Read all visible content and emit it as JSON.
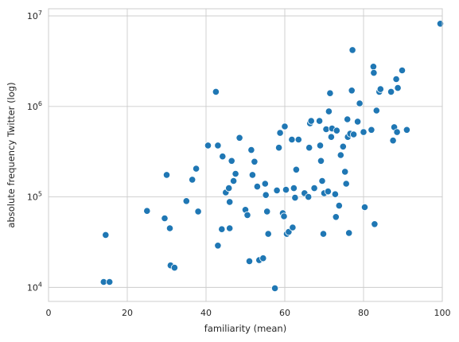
{
  "chart_data": {
    "type": "scatter",
    "xlabel": "familiarity (mean)",
    "ylabel": "absolute frequency Twitter (log)",
    "xlim": [
      0,
      100
    ],
    "ylim": [
      7000,
      12000000
    ],
    "yscale": "log",
    "grid": true,
    "x_ticks": [
      0,
      20,
      40,
      60,
      80,
      100
    ],
    "x_tick_labels": [
      "0",
      "20",
      "40",
      "60",
      "80",
      "100"
    ],
    "y_ticks": [
      10000,
      100000,
      1000000,
      10000000
    ],
    "y_tick_labels": [
      {
        "base": "10",
        "exp": "4"
      },
      {
        "base": "10",
        "exp": "5"
      },
      {
        "base": "10",
        "exp": "6"
      },
      {
        "base": "10",
        "exp": "7"
      }
    ],
    "marker_color": "#1f77b4",
    "points": [
      {
        "x": 14,
        "y": 11500
      },
      {
        "x": 15.5,
        "y": 11500
      },
      {
        "x": 14.5,
        "y": 38000
      },
      {
        "x": 25,
        "y": 70000
      },
      {
        "x": 29.5,
        "y": 58000
      },
      {
        "x": 30,
        "y": 175000
      },
      {
        "x": 30.8,
        "y": 45000
      },
      {
        "x": 31,
        "y": 17500
      },
      {
        "x": 32,
        "y": 16500
      },
      {
        "x": 35,
        "y": 90000
      },
      {
        "x": 36.5,
        "y": 155000
      },
      {
        "x": 37.5,
        "y": 205000
      },
      {
        "x": 38,
        "y": 69000
      },
      {
        "x": 40.5,
        "y": 370000
      },
      {
        "x": 42.5,
        "y": 1450000
      },
      {
        "x": 43,
        "y": 370000
      },
      {
        "x": 43,
        "y": 29000
      },
      {
        "x": 44,
        "y": 44000
      },
      {
        "x": 44.2,
        "y": 280000
      },
      {
        "x": 45,
        "y": 112000
      },
      {
        "x": 45.8,
        "y": 125000
      },
      {
        "x": 46,
        "y": 45000
      },
      {
        "x": 46,
        "y": 88000
      },
      {
        "x": 46.5,
        "y": 250000
      },
      {
        "x": 47,
        "y": 150000
      },
      {
        "x": 47.5,
        "y": 180000
      },
      {
        "x": 48.5,
        "y": 450000
      },
      {
        "x": 50,
        "y": 72000
      },
      {
        "x": 50.5,
        "y": 63000
      },
      {
        "x": 51,
        "y": 19500
      },
      {
        "x": 51.5,
        "y": 330000
      },
      {
        "x": 51.8,
        "y": 175000
      },
      {
        "x": 52.3,
        "y": 245000
      },
      {
        "x": 53,
        "y": 130000
      },
      {
        "x": 53.5,
        "y": 20000
      },
      {
        "x": 54.5,
        "y": 21000
      },
      {
        "x": 55,
        "y": 140000
      },
      {
        "x": 55.2,
        "y": 105000
      },
      {
        "x": 55.5,
        "y": 69000
      },
      {
        "x": 55.8,
        "y": 39000
      },
      {
        "x": 57.5,
        "y": 9800
      },
      {
        "x": 58,
        "y": 118000
      },
      {
        "x": 58.5,
        "y": 350000
      },
      {
        "x": 58.8,
        "y": 510000
      },
      {
        "x": 59.5,
        "y": 66000
      },
      {
        "x": 59.8,
        "y": 61000
      },
      {
        "x": 60,
        "y": 600000
      },
      {
        "x": 60.3,
        "y": 120000
      },
      {
        "x": 60.5,
        "y": 39000
      },
      {
        "x": 61,
        "y": 41000
      },
      {
        "x": 61.8,
        "y": 430000
      },
      {
        "x": 62,
        "y": 46000
      },
      {
        "x": 62.3,
        "y": 125000
      },
      {
        "x": 62.6,
        "y": 98000
      },
      {
        "x": 62.9,
        "y": 200000
      },
      {
        "x": 63.5,
        "y": 430000
      },
      {
        "x": 65,
        "y": 110000
      },
      {
        "x": 66,
        "y": 100000
      },
      {
        "x": 66.2,
        "y": 350000
      },
      {
        "x": 66.4,
        "y": 650000
      },
      {
        "x": 66.7,
        "y": 690000
      },
      {
        "x": 67.5,
        "y": 125000
      },
      {
        "x": 68.8,
        "y": 690000
      },
      {
        "x": 69,
        "y": 370000
      },
      {
        "x": 69.2,
        "y": 250000
      },
      {
        "x": 69.5,
        "y": 150000
      },
      {
        "x": 69.8,
        "y": 39000
      },
      {
        "x": 70,
        "y": 110000
      },
      {
        "x": 70.5,
        "y": 560000
      },
      {
        "x": 71,
        "y": 115000
      },
      {
        "x": 71.2,
        "y": 880000
      },
      {
        "x": 71.5,
        "y": 1400000
      },
      {
        "x": 71.8,
        "y": 460000
      },
      {
        "x": 72,
        "y": 570000
      },
      {
        "x": 72.8,
        "y": 107000
      },
      {
        "x": 73,
        "y": 60000
      },
      {
        "x": 73.2,
        "y": 540000
      },
      {
        "x": 73.8,
        "y": 80000
      },
      {
        "x": 74.2,
        "y": 290000
      },
      {
        "x": 74.8,
        "y": 360000
      },
      {
        "x": 75.3,
        "y": 190000
      },
      {
        "x": 75.6,
        "y": 140000
      },
      {
        "x": 75.9,
        "y": 720000
      },
      {
        "x": 76,
        "y": 460000
      },
      {
        "x": 76.3,
        "y": 40000
      },
      {
        "x": 76.6,
        "y": 500000
      },
      {
        "x": 77,
        "y": 1500000
      },
      {
        "x": 77.2,
        "y": 4200000
      },
      {
        "x": 77.5,
        "y": 490000
      },
      {
        "x": 78.5,
        "y": 680000
      },
      {
        "x": 79,
        "y": 1080000
      },
      {
        "x": 80,
        "y": 520000
      },
      {
        "x": 80.3,
        "y": 77000
      },
      {
        "x": 82,
        "y": 550000
      },
      {
        "x": 82.5,
        "y": 2750000
      },
      {
        "x": 82.6,
        "y": 2350000
      },
      {
        "x": 82.8,
        "y": 50000
      },
      {
        "x": 83.3,
        "y": 900000
      },
      {
        "x": 84,
        "y": 1450000
      },
      {
        "x": 84.3,
        "y": 1550000
      },
      {
        "x": 87,
        "y": 1450000
      },
      {
        "x": 87.5,
        "y": 420000
      },
      {
        "x": 87.8,
        "y": 590000
      },
      {
        "x": 88.3,
        "y": 2000000
      },
      {
        "x": 88.5,
        "y": 520000
      },
      {
        "x": 88.7,
        "y": 1600000
      },
      {
        "x": 89.8,
        "y": 2500000
      },
      {
        "x": 91,
        "y": 550000
      },
      {
        "x": 99.5,
        "y": 8200000
      }
    ]
  }
}
